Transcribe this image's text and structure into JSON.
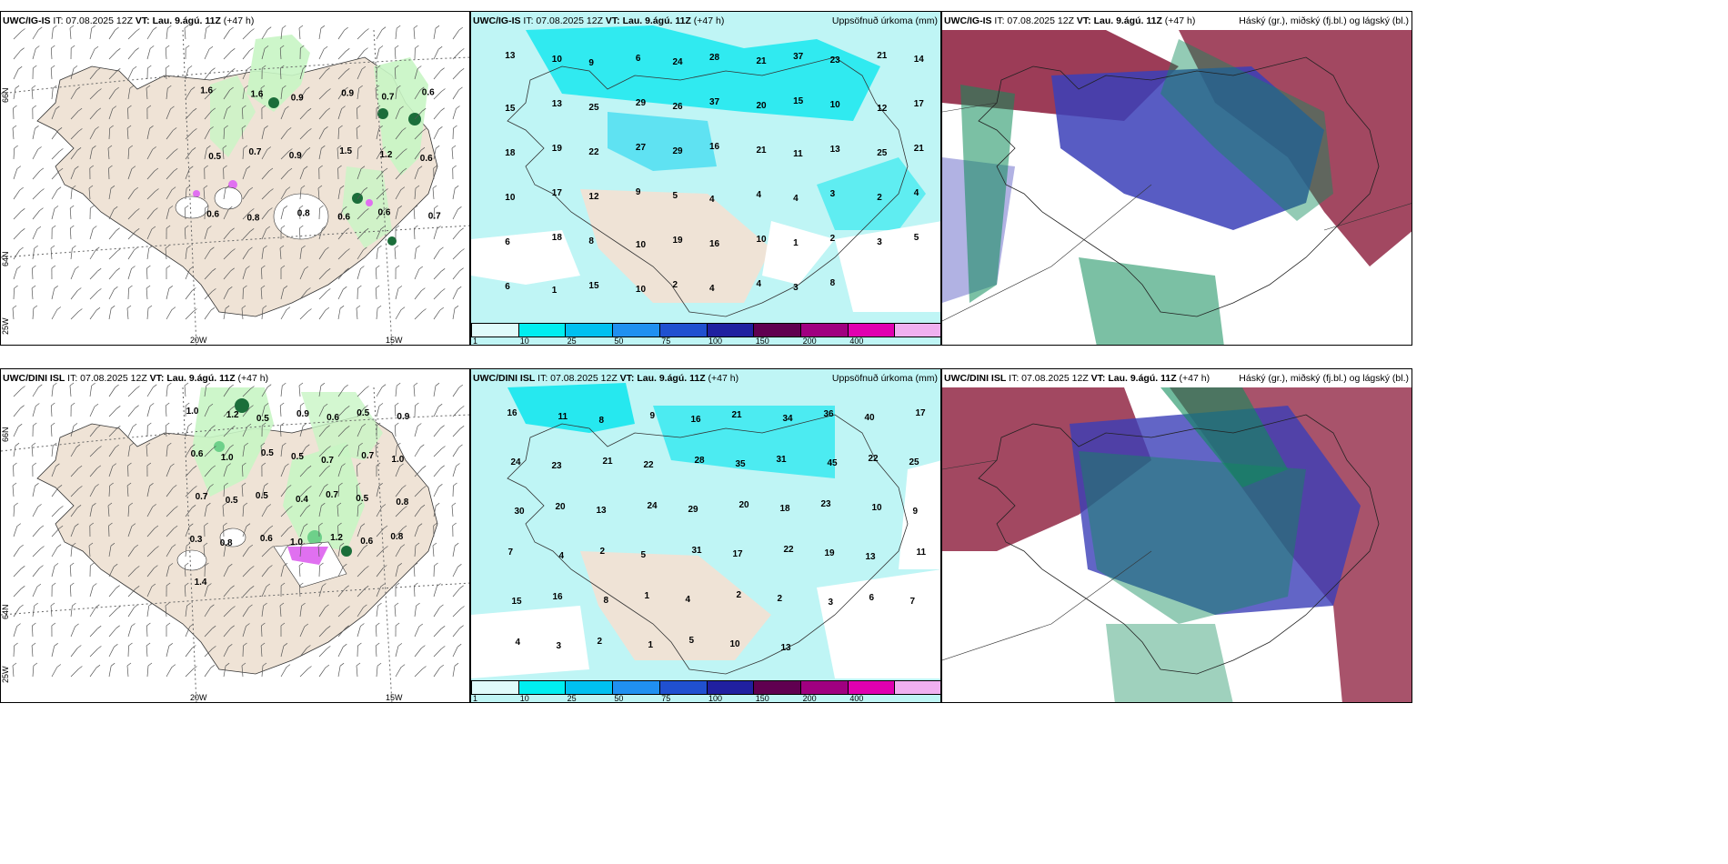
{
  "panels": {
    "p1": {
      "model": "UWC/IG-IS",
      "it": "IT: 07.08.2025 12Z",
      "vt": "VT: Lau. 9.ágú. 11Z",
      "lead": "(+47 h)",
      "title": ""
    },
    "p2": {
      "model": "UWC/IG-IS",
      "it": "IT: 07.08.2025 12Z",
      "vt": "VT: Lau. 9.ágú. 11Z",
      "lead": "(+47 h)",
      "title": "Uppsöfnuð úrkoma (mm)"
    },
    "p3": {
      "model": "UWC/IG-IS",
      "it": "IT: 07.08.2025 12Z",
      "vt": "VT: Lau. 9.ágú. 11Z",
      "lead": "(+47 h)",
      "title": "Háský (gr.), miðský (fj.bl.) og lágský (bl.)"
    },
    "p4": {
      "model": "UWC/DINI ISL",
      "it": "IT: 07.08.2025 12Z",
      "vt": "VT: Lau. 9.ágú. 11Z",
      "lead": "(+47 h)",
      "title": ""
    },
    "p5": {
      "model": "UWC/DINI ISL",
      "it": "IT: 07.08.2025 12Z",
      "vt": "VT: Lau. 9.ágú. 11Z",
      "lead": "(+47 h)",
      "title": "Uppsöfnuð úrkoma (mm)"
    },
    "p6": {
      "model": "UWC/DINI ISL",
      "it": "IT: 07.08.2025 12Z",
      "vt": "VT: Lau. 9.ágú. 11Z",
      "lead": "(+47 h)",
      "title": "Háský (gr.), miðský (fj.bl.) og lágský (bl.)"
    }
  },
  "grid_labels": {
    "lat66": "66N",
    "lat64": "64N",
    "lon20": "20W",
    "lon15": "15W",
    "lon25": "25W"
  },
  "colorbar": {
    "ticks": [
      "1",
      "10",
      "25",
      "50",
      "75",
      "100",
      "150",
      "200",
      "400"
    ],
    "colors": [
      "#e0fbfb",
      "#00eef0",
      "#00c0f0",
      "#2090f0",
      "#2050d0",
      "#2020a0",
      "#600050",
      "#a00080",
      "#e000b0",
      "#f0b0f0"
    ]
  },
  "colors": {
    "land": "#efe3d6",
    "precip_light": "#bff5f5",
    "precip_mid": "#00e5ee",
    "green_light": "#c8f5c4",
    "green_mid": "#6ed08a",
    "green_dark": "#1b6e3a",
    "high_cloud": "#0f8c5a",
    "mid_cloud": "#2b2faa",
    "low_cloud": "#8b1a3a"
  },
  "p1_values": [
    "1.6",
    "1.6",
    "0.9",
    "0.9",
    "0.7",
    "0.6",
    "0.5",
    "0.7",
    "0.9",
    "1.5",
    "1.2",
    "0.6",
    "0.6",
    "0.8",
    "0.8",
    "0.6",
    "0.6",
    "0.7"
  ],
  "p2_values": [
    "13",
    "10",
    "9",
    "6",
    "24",
    "28",
    "21",
    "37",
    "23",
    "21",
    "14",
    "15",
    "13",
    "25",
    "29",
    "26",
    "37",
    "20",
    "15",
    "10",
    "12",
    "17",
    "18",
    "19",
    "22",
    "27",
    "29",
    "16",
    "21",
    "11",
    "13",
    "25",
    "21",
    "10",
    "17",
    "12",
    "9",
    "5",
    "4",
    "4",
    "4",
    "3",
    "2",
    "4",
    "6",
    "18",
    "8",
    "10",
    "19",
    "16",
    "10",
    "1",
    "2",
    "3",
    "5",
    "6",
    "1",
    "15",
    "10",
    "2",
    "4",
    "4",
    "3",
    "8"
  ],
  "p4_values": [
    "1.0",
    "1.2",
    "0.5",
    "0.9",
    "0.6",
    "0.5",
    "0.9",
    "0.6",
    "1.0",
    "0.5",
    "0.5",
    "0.7",
    "0.7",
    "1.0",
    "0.7",
    "0.5",
    "0.5",
    "0.4",
    "0.7",
    "0.5",
    "0.8",
    "0.3",
    "0.8",
    "0.6",
    "1.0",
    "1.2",
    "0.6",
    "0.8",
    "1.4"
  ],
  "p5_values": [
    "16",
    "11",
    "8",
    "9",
    "16",
    "21",
    "34",
    "36",
    "40",
    "17",
    "24",
    "23",
    "21",
    "22",
    "28",
    "35",
    "31",
    "45",
    "22",
    "25",
    "30",
    "20",
    "13",
    "24",
    "29",
    "20",
    "18",
    "23",
    "10",
    "9",
    "7",
    "4",
    "2",
    "5",
    "31",
    "17",
    "22",
    "19",
    "13",
    "11",
    "15",
    "16",
    "8",
    "1",
    "4",
    "2",
    "2",
    "3",
    "6",
    "7",
    "4",
    "3",
    "2",
    "1",
    "5",
    "10",
    "13"
  ]
}
